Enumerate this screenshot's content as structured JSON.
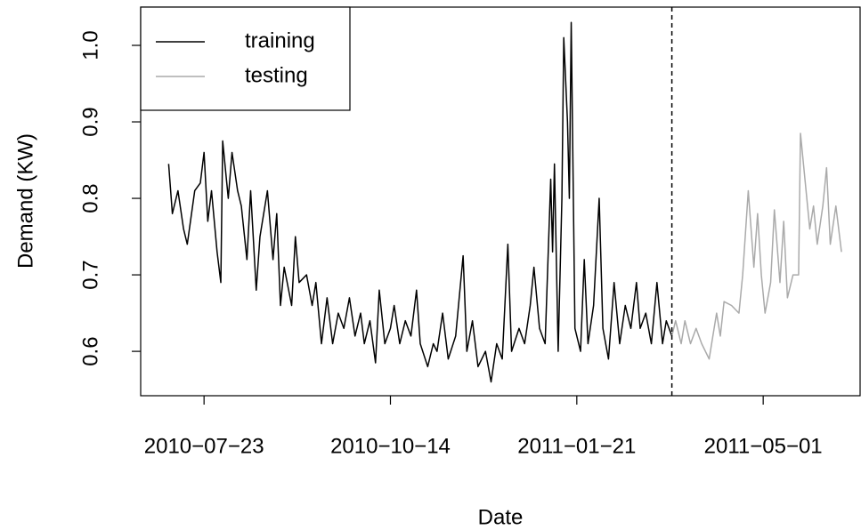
{
  "chart_data": {
    "type": "line",
    "x_label": "Date",
    "y_label": "Demand (KW)",
    "xlim": [
      -14,
      372
    ],
    "ylim": [
      0.542,
      1.05
    ],
    "xticks": [
      {
        "value": 20,
        "label": "2010−07−23"
      },
      {
        "value": 120,
        "label": "2010−10−14"
      },
      {
        "value": 220,
        "label": "2011−01−21"
      },
      {
        "value": 320,
        "label": "2011−05−01"
      }
    ],
    "yticks": [
      0.6,
      0.7,
      0.8,
      0.9,
      {
        "value": 1.0,
        "label": "1.0"
      }
    ],
    "vline": 271,
    "legend": "top-left",
    "series": [
      {
        "name": "training",
        "color": "#000000",
        "x": [
          1,
          3,
          6,
          9,
          11,
          15,
          18,
          20,
          22,
          24,
          27,
          29,
          30,
          33,
          35,
          38,
          40,
          43,
          45,
          48,
          50,
          54,
          57,
          59,
          61,
          63,
          67,
          69,
          71,
          75,
          78,
          80,
          83,
          86,
          89,
          92,
          95,
          98,
          101,
          104,
          106,
          109,
          112,
          114,
          117,
          120,
          122,
          125,
          128,
          131,
          134,
          136,
          140,
          143,
          145,
          148,
          151,
          155,
          159,
          161,
          164,
          167,
          171,
          174,
          177,
          180,
          183,
          185,
          189,
          192,
          195,
          197,
          200,
          203,
          206,
          207,
          208,
          210,
          212,
          213,
          215,
          216,
          217,
          219,
          222,
          224,
          226,
          229,
          232,
          234,
          237,
          240,
          243,
          246,
          249,
          252,
          254,
          257,
          260,
          263,
          266,
          268,
          271
        ],
        "values": [
          0.845,
          0.78,
          0.81,
          0.76,
          0.74,
          0.81,
          0.82,
          0.86,
          0.77,
          0.81,
          0.73,
          0.69,
          0.875,
          0.8,
          0.86,
          0.81,
          0.79,
          0.72,
          0.81,
          0.68,
          0.75,
          0.81,
          0.72,
          0.78,
          0.66,
          0.71,
          0.66,
          0.75,
          0.69,
          0.7,
          0.66,
          0.69,
          0.61,
          0.67,
          0.61,
          0.65,
          0.63,
          0.67,
          0.62,
          0.65,
          0.61,
          0.64,
          0.585,
          0.68,
          0.61,
          0.63,
          0.66,
          0.61,
          0.64,
          0.62,
          0.68,
          0.61,
          0.58,
          0.61,
          0.6,
          0.65,
          0.59,
          0.62,
          0.725,
          0.6,
          0.64,
          0.58,
          0.6,
          0.56,
          0.61,
          0.59,
          0.74,
          0.6,
          0.63,
          0.61,
          0.66,
          0.71,
          0.63,
          0.61,
          0.825,
          0.73,
          0.845,
          0.6,
          0.8,
          1.01,
          0.9,
          0.8,
          1.03,
          0.63,
          0.6,
          0.72,
          0.61,
          0.66,
          0.8,
          0.63,
          0.59,
          0.69,
          0.61,
          0.66,
          0.63,
          0.69,
          0.63,
          0.65,
          0.61,
          0.69,
          0.61,
          0.64,
          0.62
        ]
      },
      {
        "name": "testing",
        "color": "#aaaaaa",
        "x": [
          271,
          273,
          276,
          278,
          281,
          284,
          287,
          291,
          295,
          297,
          299,
          303,
          307,
          309,
          312,
          315,
          317,
          319,
          321,
          324,
          326,
          329,
          331,
          333,
          336,
          339,
          340,
          343,
          345,
          347,
          349,
          352,
          354,
          356,
          359,
          362
        ],
        "values": [
          0.62,
          0.64,
          0.61,
          0.64,
          0.61,
          0.63,
          0.61,
          0.59,
          0.65,
          0.62,
          0.665,
          0.66,
          0.65,
          0.7,
          0.81,
          0.71,
          0.78,
          0.7,
          0.65,
          0.69,
          0.785,
          0.69,
          0.77,
          0.67,
          0.7,
          0.7,
          0.885,
          0.81,
          0.76,
          0.79,
          0.74,
          0.79,
          0.84,
          0.74,
          0.79,
          0.73
        ]
      }
    ]
  }
}
